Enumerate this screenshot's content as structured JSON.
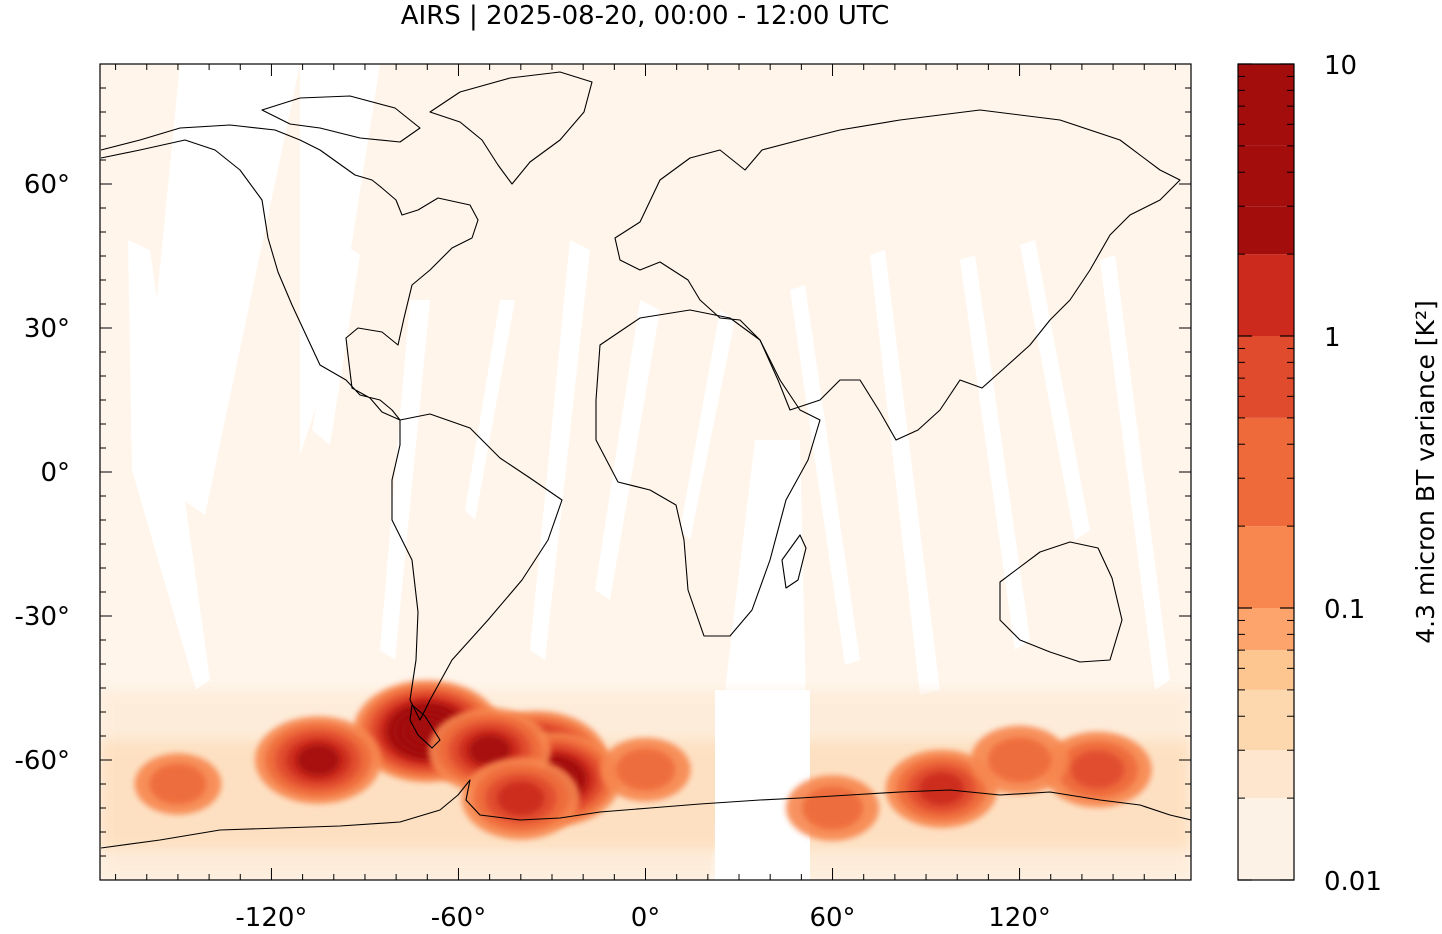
{
  "chart_data": {
    "type": "heatmap",
    "title": "AIRS | 2025-08-20, 00:00 - 12:00 UTC",
    "x_axis": {
      "range": [
        -175,
        175
      ],
      "ticks": [
        -120,
        -60,
        0,
        60,
        120
      ],
      "tick_labels": [
        "-120°",
        "-60°",
        "0°",
        "60°",
        "120°"
      ],
      "minor_step": 10
    },
    "y_axis": {
      "range": [
        -85,
        85
      ],
      "ticks": [
        60,
        30,
        0,
        -30,
        -60
      ],
      "tick_labels": [
        "60°",
        "30°",
        "0°",
        "-30°",
        "-60°"
      ],
      "minor_step": 5
    },
    "colorbar": {
      "label": "4.3 micron BT variance [K²]",
      "scale": "log",
      "range": [
        0.01,
        10
      ],
      "tick_labels": [
        "10",
        "1",
        "0.1",
        "0.01"
      ],
      "tick_values": [
        10,
        1,
        0.1,
        0.01
      ],
      "levels": [
        0.01,
        0.02,
        0.03,
        0.05,
        0.07,
        0.1,
        0.2,
        0.5,
        1,
        2,
        3,
        5,
        10
      ],
      "colors": [
        "#fdf2e6",
        "#fde6cd",
        "#fdd8af",
        "#fdc590",
        "#fda46c",
        "#f7874f",
        "#ee6a3b",
        "#e04b2e",
        "#cb2a1d",
        "#a30d0c",
        "#a30d0c",
        "#a30d0c"
      ]
    },
    "background_color": "#fff5eb",
    "data_gap_color": "#ffffff",
    "coastline_color": "#000000",
    "hotspots": [
      {
        "lon": -70,
        "lat": -54,
        "value": 10
      },
      {
        "lon": -35,
        "lat": -60,
        "value": 7
      },
      {
        "lon": -30,
        "lat": -64,
        "value": 5
      },
      {
        "lon": -105,
        "lat": -60,
        "value": 2.5
      },
      {
        "lon": -50,
        "lat": -58,
        "value": 2
      },
      {
        "lon": -40,
        "lat": -68,
        "value": 1.5
      },
      {
        "lon": 95,
        "lat": -66,
        "value": 1
      },
      {
        "lon": 145,
        "lat": -62,
        "value": 0.8
      },
      {
        "lon": 120,
        "lat": -60,
        "value": 0.4
      },
      {
        "lon": 60,
        "lat": -70,
        "value": 0.3
      },
      {
        "lon": 0,
        "lat": -62,
        "value": 0.25
      },
      {
        "lon": -150,
        "lat": -65,
        "value": 0.2
      }
    ],
    "grid": false
  }
}
